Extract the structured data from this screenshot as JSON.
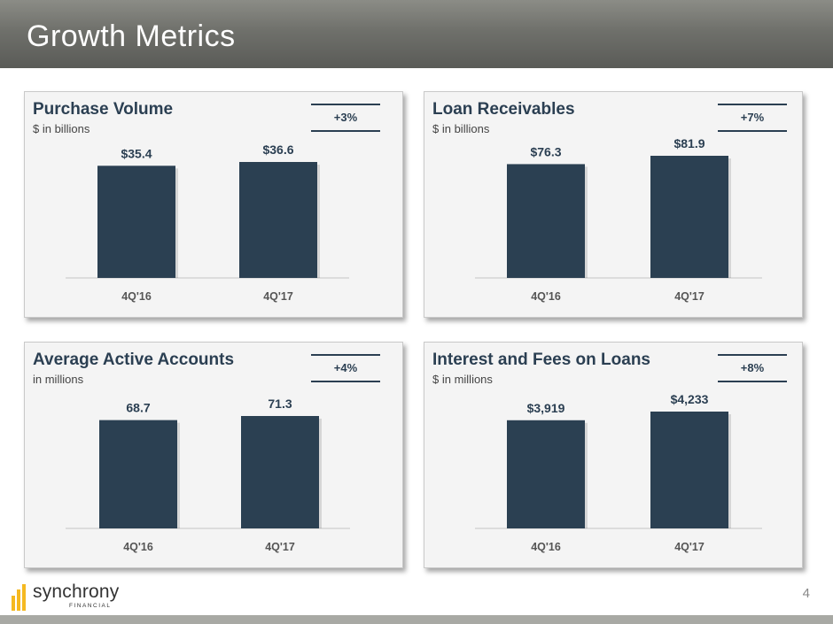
{
  "header": {
    "title": "Growth Metrics"
  },
  "page_number": "4",
  "logo": {
    "name": "synchrony",
    "sub": "FINANCIAL",
    "bars_color": "#f5b920"
  },
  "colors": {
    "bar": "#2b4052",
    "title_text": "#2b3f52",
    "header_bg": "#6f706b"
  },
  "chart_data": [
    {
      "type": "bar",
      "title": "Purchase Volume",
      "subtitle": "$ in billions",
      "growth": "+3%",
      "categories": [
        "4Q'16",
        "4Q'17"
      ],
      "values": [
        35.4,
        36.6
      ],
      "labels": [
        "$35.4",
        "$36.6"
      ]
    },
    {
      "type": "bar",
      "title": "Loan Receivables",
      "subtitle": "$ in billions",
      "growth": "+7%",
      "categories": [
        "4Q'16",
        "4Q'17"
      ],
      "values": [
        76.3,
        81.9
      ],
      "labels": [
        "$76.3",
        "$81.9"
      ]
    },
    {
      "type": "bar",
      "title": "Average Active Accounts",
      "subtitle": "in millions",
      "growth": "+4%",
      "categories": [
        "4Q'16",
        "4Q'17"
      ],
      "values": [
        68.7,
        71.3
      ],
      "labels": [
        "68.7",
        "71.3"
      ]
    },
    {
      "type": "bar",
      "title": "Interest and Fees on Loans",
      "subtitle": "$ in millions",
      "growth": "+8%",
      "categories": [
        "4Q'16",
        "4Q'17"
      ],
      "values": [
        3919,
        4233
      ],
      "labels": [
        "$3,919",
        "$4,233"
      ]
    }
  ]
}
